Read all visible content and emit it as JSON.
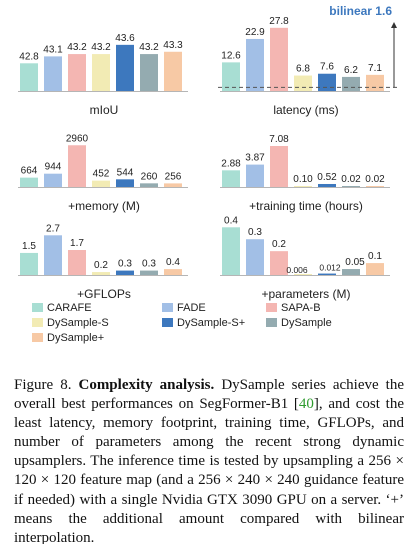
{
  "series_colors": {
    "CARAFE": "#a8ded3",
    "FADE": "#a2bfe6",
    "SAPA-B": "#f4b6b2",
    "DySample-S": "#f2ebb4",
    "DySample-S+": "#3d78be",
    "DySample": "#94abb0",
    "DySample+": "#f7c9a5"
  },
  "annotation_color": "#3d78be",
  "chart_data": [
    {
      "type": "bar",
      "xlabel": "mIoU",
      "categories": [
        "CARAFE",
        "FADE",
        "SAPA-B",
        "DySample-S",
        "DySample-S+",
        "DySample",
        "DySample+"
      ],
      "values": [
        42.8,
        43.1,
        43.2,
        43.2,
        43.6,
        43.2,
        43.3
      ],
      "labels": [
        "42.8",
        "43.1",
        "43.2",
        "43.2",
        "43.6",
        "43.2",
        "43.3"
      ],
      "ylim": [
        41.6,
        44.2
      ]
    },
    {
      "type": "bar",
      "xlabel": "latency (ms)",
      "categories": [
        "CARAFE",
        "FADE",
        "SAPA-B",
        "DySample-S",
        "DySample-S+",
        "DySample",
        "DySample+"
      ],
      "values": [
        12.6,
        22.9,
        27.8,
        6.8,
        7.6,
        6.2,
        7.1
      ],
      "labels": [
        "12.6",
        "22.9",
        "27.8",
        "6.8",
        "7.6",
        "6.2",
        "7.1"
      ],
      "ylim": [
        0,
        33
      ],
      "baseline": {
        "label": "bilinear 1.6",
        "value": 1.6
      }
    },
    {
      "type": "bar",
      "xlabel": "+memory (M)",
      "categories": [
        "CARAFE",
        "FADE",
        "SAPA-B",
        "DySample-S",
        "DySample-S+",
        "DySample",
        "DySample+"
      ],
      "values": [
        664,
        944,
        2960,
        452,
        544,
        260,
        256
      ],
      "labels": [
        "664",
        "944",
        "2960",
        "452",
        "544",
        "260",
        "256"
      ],
      "ylim": [
        0,
        3900
      ]
    },
    {
      "type": "bar",
      "xlabel": "+training time (hours)",
      "categories": [
        "CARAFE",
        "FADE",
        "SAPA-B",
        "DySample-S",
        "DySample-S+",
        "DySample",
        "DySample+"
      ],
      "values": [
        2.88,
        3.87,
        7.08,
        0.1,
        0.52,
        0.02,
        0.02
      ],
      "labels": [
        "2.88",
        "3.87",
        "7.08",
        "0.10",
        "0.52",
        "0.02",
        "0.02"
      ],
      "ylim": [
        0,
        9.5
      ]
    },
    {
      "type": "bar",
      "xlabel": "+GFLOPs",
      "categories": [
        "CARAFE",
        "FADE",
        "SAPA-B",
        "DySample-S",
        "DySample-S+",
        "DySample",
        "DySample+"
      ],
      "values": [
        1.5,
        2.7,
        1.7,
        0.2,
        0.3,
        0.3,
        0.4
      ],
      "labels": [
        "1.5",
        "2.7",
        "1.7",
        "0.2",
        "0.3",
        "0.3",
        "0.4"
      ],
      "ylim": [
        0,
        3.4
      ]
    },
    {
      "type": "bar",
      "xlabel": "+parameters (M)",
      "categories": [
        "CARAFE",
        "FADE",
        "SAPA-B",
        "DySample-S",
        "DySample-S+",
        "DySample",
        "DySample+"
      ],
      "values": [
        0.4,
        0.3,
        0.2,
        0.006,
        0.012,
        0.05,
        0.1
      ],
      "labels": [
        "0.4",
        "0.3",
        "0.2",
        "0.006",
        "0.012",
        "0.05",
        "0.1"
      ],
      "ylim": [
        0,
        0.52
      ]
    }
  ],
  "legend": [
    "CARAFE",
    "FADE",
    "SAPA-B",
    "DySample-S",
    "DySample-S+",
    "DySample",
    "DySample+"
  ],
  "caption": {
    "figure_label": "Figure 8.",
    "title_bold": "Complexity analysis.",
    "text_1": "DySample series achieve the overall best performances on SegFormer-B1 [",
    "citation": "40",
    "text_2": "], and cost the least latency, memory footprint, training time, GFLOPs, and number of parameters among the recent strong dynamic upsamplers. The inference time is tested by upsampling a 256 × 120 × 120 feature map (and a 256 × 240 × 240 guidance feature if needed) with a single Nvidia GTX 3090 GPU on a server. ‘+’ means the additional amount compared with bilinear interpolation."
  }
}
